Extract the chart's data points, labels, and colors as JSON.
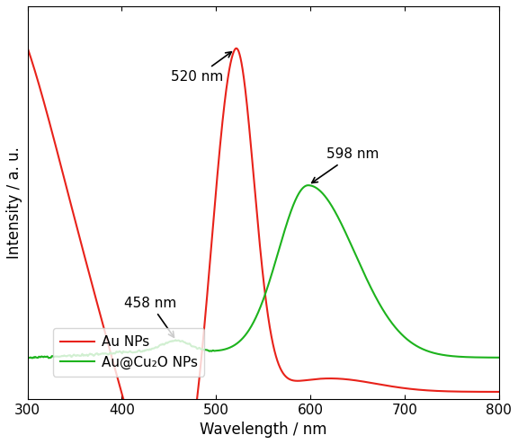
{
  "xlabel": "Wavelength / nm",
  "ylabel": "Intensity / a. u.",
  "xlim": [
    300,
    800
  ],
  "x_ticks": [
    300,
    400,
    500,
    600,
    700,
    800
  ],
  "annotation_520": {
    "x": 520,
    "label": "520 nm"
  },
  "annotation_598": {
    "x": 598,
    "label": "598 nm"
  },
  "annotation_458": {
    "x": 458,
    "label": "458 nm"
  },
  "color_au": "#e8221a",
  "color_core": "#1db31d",
  "legend_au": "Au NPs",
  "legend_core": "Au@Cu₂O NPs"
}
